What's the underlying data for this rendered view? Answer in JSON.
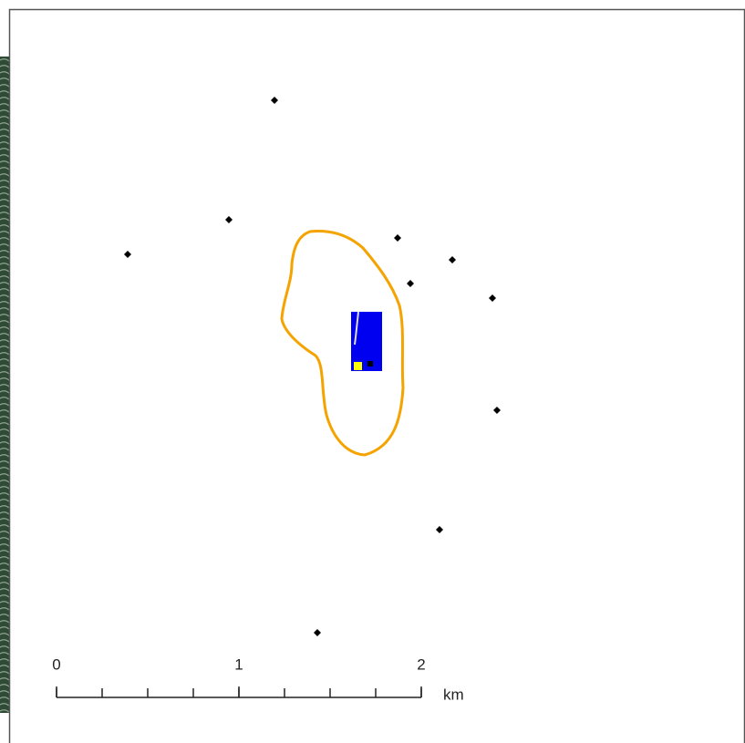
{
  "scale_bar": {
    "ticks": [
      0,
      1,
      2
    ],
    "unit": "km"
  }
}
